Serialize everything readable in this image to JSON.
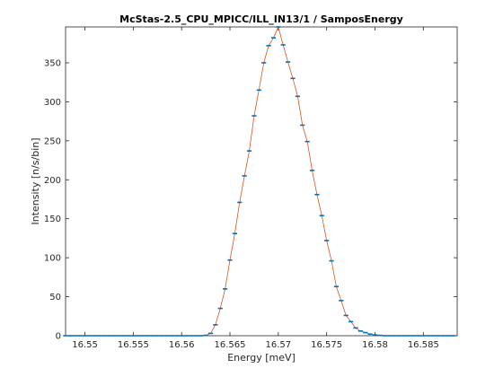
{
  "chart_data": {
    "type": "line",
    "title": "McStas-2.5_CPU_MPICC/ILL_IN13/1 / SamposEnergy",
    "xlabel": "Energy [meV]",
    "ylabel": "Intensity [n/s/bin]",
    "xlim": [
      16.548,
      16.5885
    ],
    "ylim": [
      0,
      396
    ],
    "xticks": [
      16.55,
      16.555,
      16.56,
      16.565,
      16.57,
      16.575,
      16.58,
      16.585
    ],
    "xtick_labels": [
      "16.55",
      "16.555",
      "16.56",
      "16.565",
      "16.57",
      "16.575",
      "16.58",
      "16.585"
    ],
    "yticks": [
      0,
      50,
      100,
      150,
      200,
      250,
      300,
      350
    ],
    "ytick_labels": [
      "0",
      "50",
      "100",
      "150",
      "200",
      "250",
      "300",
      "350"
    ],
    "grid": false,
    "colors": {
      "line": "#d95319",
      "marker": "#0072bd",
      "axes": "#262626"
    },
    "x": [
      16.548,
      16.5485,
      16.549,
      16.5495,
      16.55,
      16.5505,
      16.551,
      16.5515,
      16.552,
      16.5525,
      16.553,
      16.5535,
      16.554,
      16.5545,
      16.555,
      16.5555,
      16.556,
      16.5565,
      16.557,
      16.5575,
      16.558,
      16.5585,
      16.559,
      16.5595,
      16.56,
      16.5605,
      16.561,
      16.5615,
      16.562,
      16.5625,
      16.563,
      16.5635,
      16.564,
      16.5645,
      16.565,
      16.5655,
      16.566,
      16.5665,
      16.567,
      16.5675,
      16.568,
      16.5685,
      16.569,
      16.5695,
      16.57,
      16.5705,
      16.571,
      16.5715,
      16.572,
      16.5725,
      16.573,
      16.5735,
      16.574,
      16.5745,
      16.575,
      16.5755,
      16.576,
      16.5765,
      16.577,
      16.5775,
      16.578,
      16.5785,
      16.579,
      16.5795,
      16.58,
      16.5805,
      16.581,
      16.5815,
      16.582,
      16.5825,
      16.583,
      16.5835,
      16.584,
      16.5845,
      16.585,
      16.5855,
      16.586,
      16.5865,
      16.587,
      16.5875,
      16.588
    ],
    "values": [
      0,
      0,
      0,
      0,
      0,
      0,
      0,
      0,
      0,
      0,
      0,
      0,
      0,
      0,
      0,
      0,
      0,
      0,
      0,
      0,
      0,
      0,
      0,
      0,
      0,
      0,
      0,
      0,
      0,
      0.5,
      3,
      14,
      35,
      60,
      97,
      131,
      171,
      205,
      237,
      282,
      315,
      350,
      372,
      382,
      396,
      373,
      351,
      330,
      307,
      270,
      249,
      212,
      181,
      154,
      122,
      96,
      63,
      45,
      26,
      18,
      10,
      6,
      4,
      2,
      1,
      0.5,
      0,
      0,
      0,
      0,
      0,
      0,
      0,
      0,
      0,
      0,
      0,
      0,
      0,
      0,
      0
    ]
  }
}
